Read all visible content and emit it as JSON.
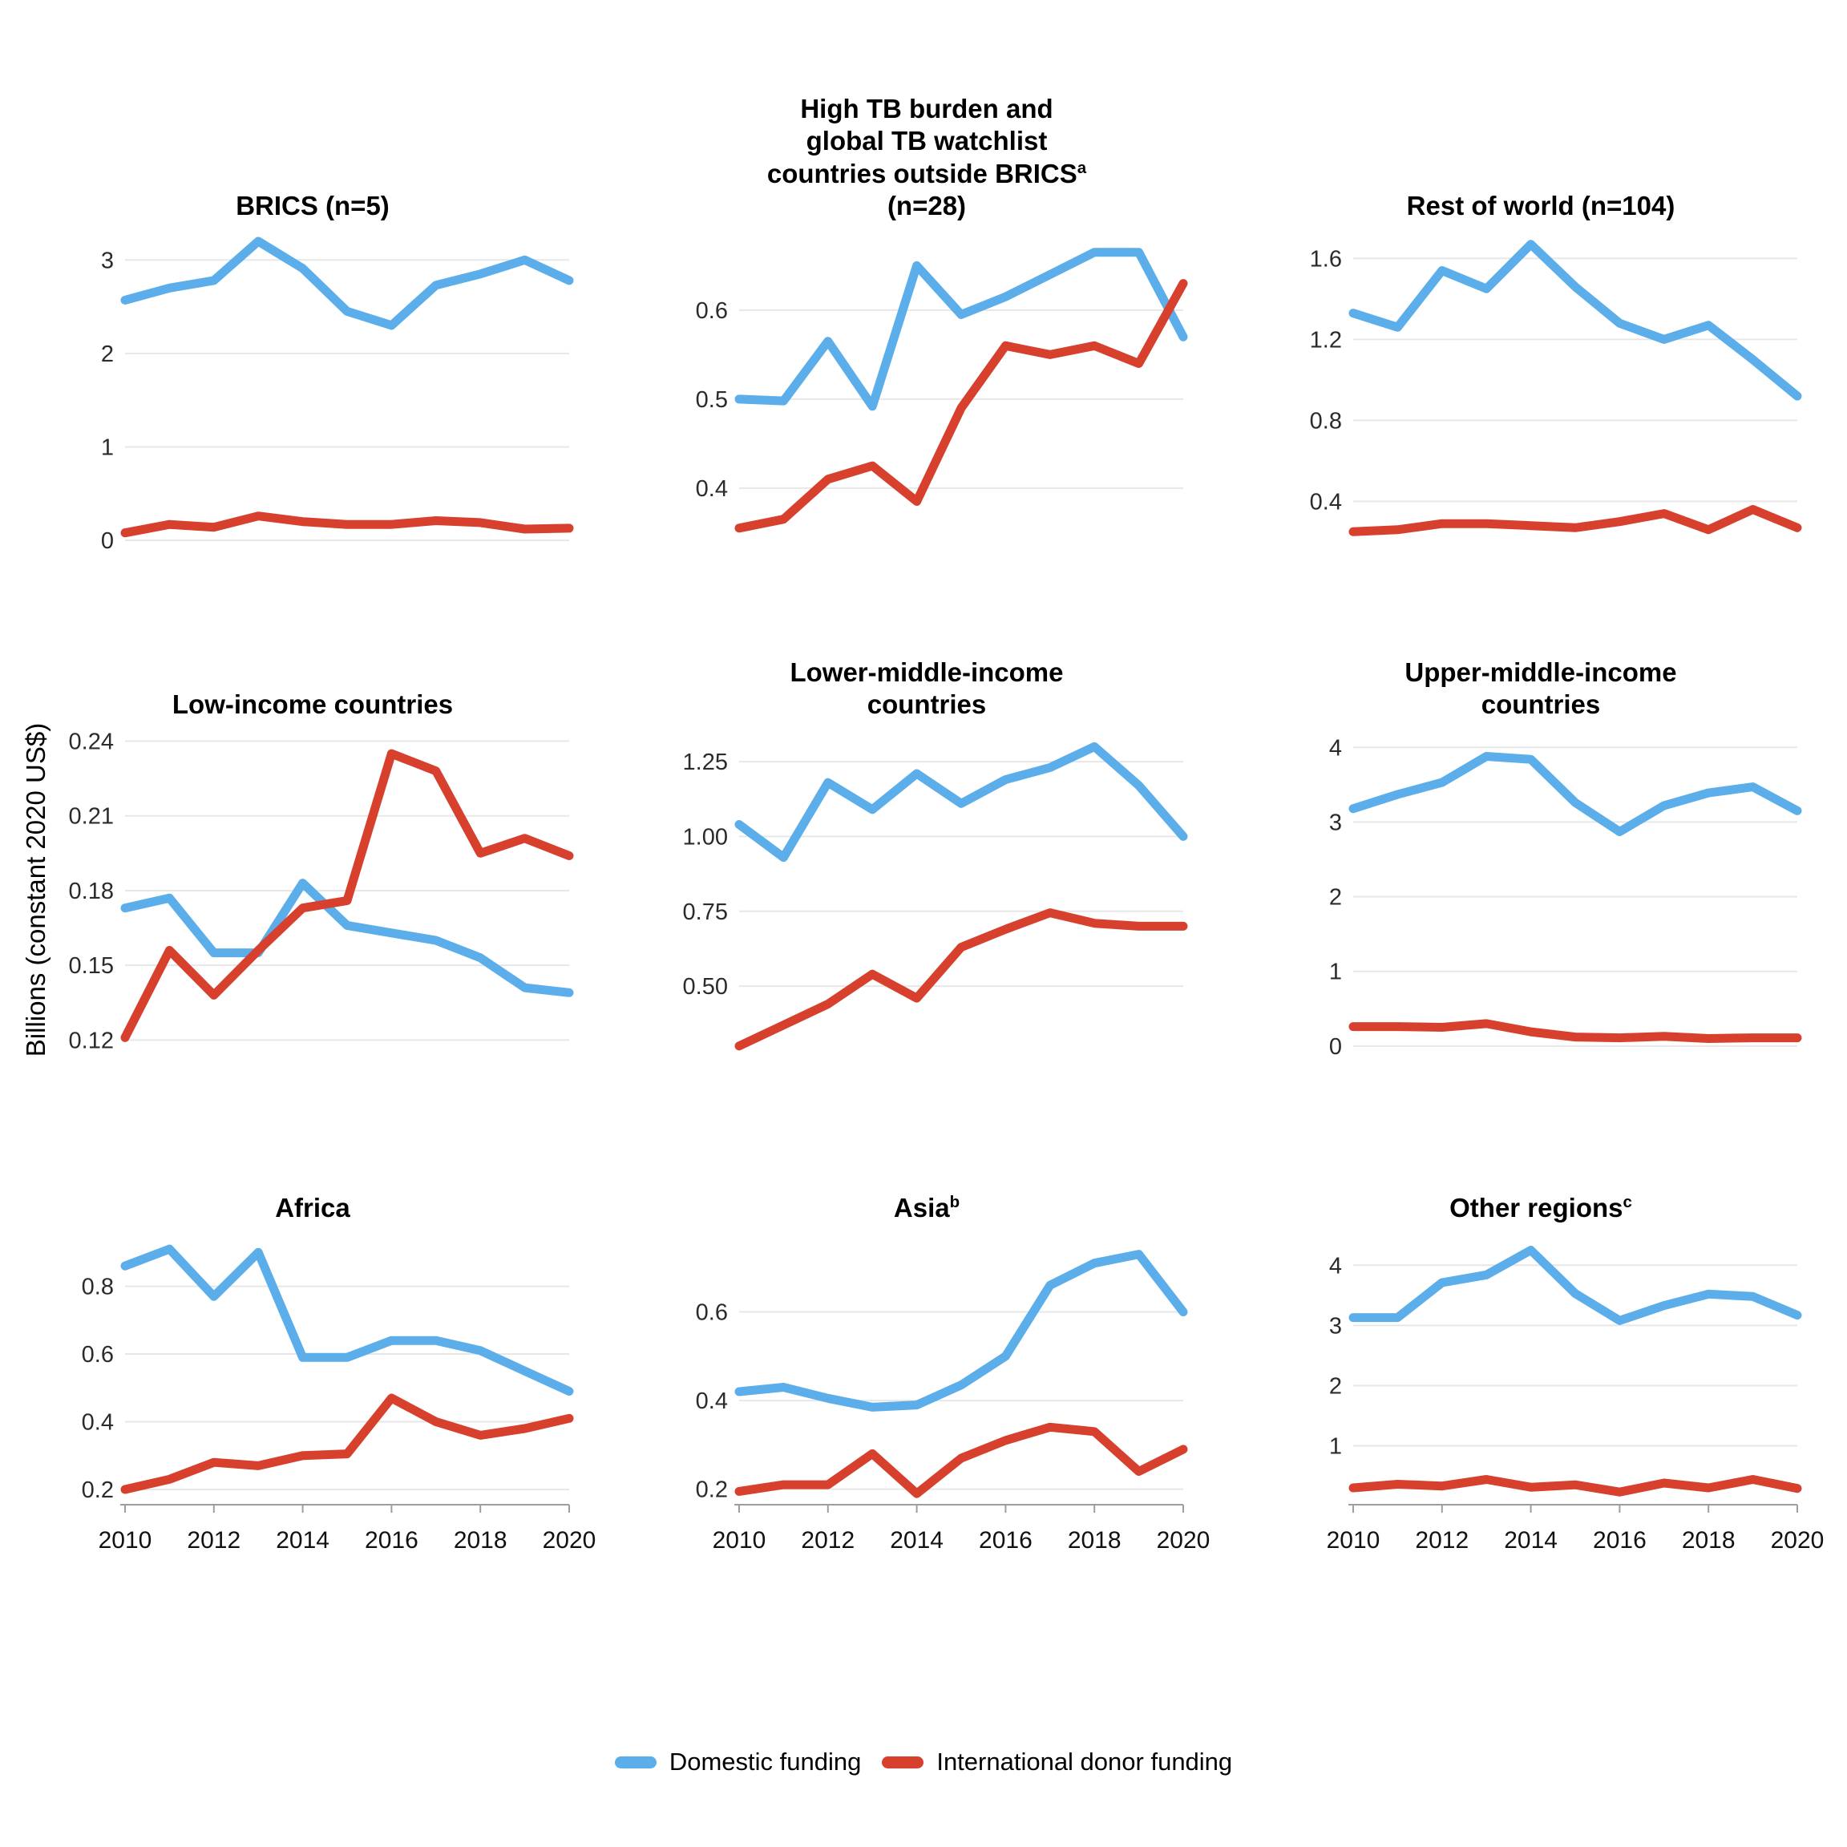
{
  "page": {
    "background": "#ffffff"
  },
  "colors": {
    "domestic": "#5BAEE9",
    "donor": "#D8402E",
    "grid": "#E7E7E7",
    "tick_text": "#2b2b2b",
    "xtick_text": "#111111",
    "axis_line": "#9e9e9e"
  },
  "ylabel": "Billions (constant 2020 US$)",
  "legend": [
    {
      "label": "Domestic funding",
      "series": "domestic"
    },
    {
      "label": "International donor funding",
      "series": "donor"
    }
  ],
  "years": [
    2010,
    2011,
    2012,
    2013,
    2014,
    2015,
    2016,
    2017,
    2018,
    2019,
    2020
  ],
  "xtick_labels": [
    "2010",
    "2012",
    "2014",
    "2016",
    "2018",
    "2020"
  ],
  "chart_data": [
    {
      "type": "line",
      "title_lines": [
        {
          "t": "BRICS (n=5)",
          "sup": ""
        }
      ],
      "yticks": [
        {
          "v": 0,
          "label": "0"
        },
        {
          "v": 1,
          "label": "1"
        },
        {
          "v": 2,
          "label": "2"
        },
        {
          "v": 3,
          "label": "3"
        }
      ],
      "ylim": [
        -0.06,
        3.32
      ],
      "show_x_axis": false,
      "series": [
        {
          "name": "Domestic funding",
          "color": "domestic",
          "values": [
            2.57,
            2.7,
            2.78,
            3.2,
            2.91,
            2.45,
            2.3,
            2.73,
            2.85,
            3.0,
            2.78
          ]
        },
        {
          "name": "International donor funding",
          "color": "donor",
          "values": [
            0.08,
            0.17,
            0.14,
            0.26,
            0.2,
            0.17,
            0.17,
            0.21,
            0.19,
            0.12,
            0.13
          ]
        }
      ]
    },
    {
      "type": "line",
      "title_lines": [
        {
          "t": "High TB burden and",
          "sup": ""
        },
        {
          "t": "global TB watchlist",
          "sup": ""
        },
        {
          "t": "countries outside BRICS",
          "sup": "a"
        },
        {
          "t": "(n=28)",
          "sup": ""
        }
      ],
      "yticks": [
        {
          "v": 0.4,
          "label": "0.4"
        },
        {
          "v": 0.5,
          "label": "0.5"
        },
        {
          "v": 0.6,
          "label": "0.6"
        }
      ],
      "ylim": [
        0.335,
        0.69
      ],
      "show_x_axis": false,
      "series": [
        {
          "name": "Domestic funding",
          "color": "domestic",
          "values": [
            0.5,
            0.498,
            0.565,
            0.492,
            0.65,
            0.595,
            0.615,
            0.64,
            0.665,
            0.665,
            0.57
          ]
        },
        {
          "name": "International donor funding",
          "color": "donor",
          "values": [
            0.355,
            0.365,
            0.41,
            0.425,
            0.385,
            0.49,
            0.56,
            0.55,
            0.56,
            0.54,
            0.63
          ]
        }
      ]
    },
    {
      "type": "line",
      "title_lines": [
        {
          "t": "Rest of world (n=104)",
          "sup": ""
        }
      ],
      "yticks": [
        {
          "v": 0.4,
          "label": "0.4"
        },
        {
          "v": 0.8,
          "label": "0.8"
        },
        {
          "v": 1.2,
          "label": "1.2"
        },
        {
          "v": 1.6,
          "label": "1.6"
        }
      ],
      "ylim": [
        0.18,
        1.74
      ],
      "show_x_axis": false,
      "series": [
        {
          "name": "Domestic funding",
          "color": "domestic",
          "values": [
            1.33,
            1.26,
            1.54,
            1.45,
            1.67,
            1.46,
            1.28,
            1.2,
            1.27,
            1.1,
            0.92
          ]
        },
        {
          "name": "International donor funding",
          "color": "donor",
          "values": [
            0.25,
            0.26,
            0.29,
            0.29,
            0.28,
            0.27,
            0.3,
            0.34,
            0.26,
            0.36,
            0.27
          ]
        }
      ]
    },
    {
      "type": "line",
      "title_lines": [
        {
          "t": "Low-income countries",
          "sup": ""
        }
      ],
      "yticks": [
        {
          "v": 0.12,
          "label": "0.12"
        },
        {
          "v": 0.15,
          "label": "0.15"
        },
        {
          "v": 0.18,
          "label": "0.18"
        },
        {
          "v": 0.21,
          "label": "0.21"
        },
        {
          "v": 0.24,
          "label": "0.24"
        }
      ],
      "ylim": [
        0.114,
        0.245
      ],
      "show_x_axis": false,
      "series": [
        {
          "name": "Domestic funding",
          "color": "domestic",
          "values": [
            0.173,
            0.177,
            0.155,
            0.155,
            0.183,
            0.166,
            0.163,
            0.16,
            0.153,
            0.141,
            0.139
          ]
        },
        {
          "name": "International donor funding",
          "color": "donor",
          "values": [
            0.121,
            0.156,
            0.138,
            0.156,
            0.173,
            0.176,
            0.235,
            0.228,
            0.195,
            0.201,
            0.194
          ]
        }
      ]
    },
    {
      "type": "line",
      "title_lines": [
        {
          "t": "Lower-middle-income",
          "sup": ""
        },
        {
          "t": "countries",
          "sup": ""
        }
      ],
      "yticks": [
        {
          "v": 0.5,
          "label": "0.50"
        },
        {
          "v": 0.75,
          "label": "0.75"
        },
        {
          "v": 1.0,
          "label": "1.00"
        },
        {
          "v": 1.25,
          "label": "1.25"
        }
      ],
      "ylim": [
        0.27,
        1.36
      ],
      "show_x_axis": false,
      "series": [
        {
          "name": "Domestic funding",
          "color": "domestic",
          "values": [
            1.04,
            0.93,
            1.18,
            1.09,
            1.21,
            1.11,
            1.19,
            1.23,
            1.3,
            1.17,
            1.0
          ]
        },
        {
          "name": "International donor funding",
          "color": "donor",
          "values": [
            0.3,
            0.37,
            0.44,
            0.54,
            0.46,
            0.63,
            0.69,
            0.745,
            0.71,
            0.7,
            0.7
          ]
        }
      ]
    },
    {
      "type": "line",
      "title_lines": [
        {
          "t": "Upper-middle-income",
          "sup": ""
        },
        {
          "t": "countries",
          "sup": ""
        }
      ],
      "yticks": [
        {
          "v": 0,
          "label": "0"
        },
        {
          "v": 1,
          "label": "1"
        },
        {
          "v": 2,
          "label": "2"
        },
        {
          "v": 3,
          "label": "3"
        },
        {
          "v": 4,
          "label": "4"
        }
      ],
      "ylim": [
        -0.12,
        4.25
      ],
      "show_x_axis": false,
      "series": [
        {
          "name": "Domestic funding",
          "color": "domestic",
          "values": [
            3.18,
            3.37,
            3.53,
            3.88,
            3.84,
            3.26,
            2.87,
            3.22,
            3.39,
            3.47,
            3.15
          ]
        },
        {
          "name": "International donor funding",
          "color": "donor",
          "values": [
            0.26,
            0.26,
            0.25,
            0.3,
            0.19,
            0.12,
            0.11,
            0.13,
            0.1,
            0.11,
            0.11
          ]
        }
      ]
    },
    {
      "type": "line",
      "title_lines": [
        {
          "t": "Africa",
          "sup": ""
        }
      ],
      "yticks": [
        {
          "v": 0.2,
          "label": "0.2"
        },
        {
          "v": 0.4,
          "label": "0.4"
        },
        {
          "v": 0.6,
          "label": "0.6"
        },
        {
          "v": 0.8,
          "label": "0.8"
        }
      ],
      "ylim": [
        0.155,
        0.96
      ],
      "show_x_axis": true,
      "series": [
        {
          "name": "Domestic funding",
          "color": "domestic",
          "values": [
            0.86,
            0.91,
            0.77,
            0.9,
            0.59,
            0.59,
            0.64,
            0.64,
            0.61,
            0.55,
            0.49
          ]
        },
        {
          "name": "International donor funding",
          "color": "donor",
          "values": [
            0.2,
            0.23,
            0.28,
            0.27,
            0.3,
            0.305,
            0.47,
            0.4,
            0.36,
            0.38,
            0.41
          ]
        }
      ]
    },
    {
      "type": "line",
      "title_lines": [
        {
          "t": "Asia",
          "sup": "b"
        }
      ],
      "yticks": [
        {
          "v": 0.2,
          "label": "0.2"
        },
        {
          "v": 0.4,
          "label": "0.4"
        },
        {
          "v": 0.6,
          "label": "0.6"
        }
      ],
      "ylim": [
        0.165,
        0.78
      ],
      "show_x_axis": true,
      "series": [
        {
          "name": "Domestic funding",
          "color": "domestic",
          "values": [
            0.42,
            0.43,
            0.405,
            0.385,
            0.39,
            0.435,
            0.5,
            0.66,
            0.71,
            0.73,
            0.6
          ]
        },
        {
          "name": "International donor funding",
          "color": "donor",
          "values": [
            0.195,
            0.21,
            0.21,
            0.28,
            0.19,
            0.27,
            0.31,
            0.34,
            0.33,
            0.24,
            0.29
          ]
        }
      ]
    },
    {
      "type": "line",
      "title_lines": [
        {
          "t": "Other regions",
          "sup": "c"
        }
      ],
      "yticks": [
        {
          "v": 1,
          "label": "1"
        },
        {
          "v": 2,
          "label": "2"
        },
        {
          "v": 3,
          "label": "3"
        },
        {
          "v": 4,
          "label": "4"
        }
      ],
      "ylim": [
        0.02,
        4.55
      ],
      "show_x_axis": true,
      "series": [
        {
          "name": "Domestic funding",
          "color": "domestic",
          "values": [
            3.13,
            3.13,
            3.71,
            3.84,
            4.25,
            3.53,
            3.08,
            3.33,
            3.52,
            3.48,
            3.17
          ]
        },
        {
          "name": "International donor funding",
          "color": "donor",
          "values": [
            0.3,
            0.36,
            0.33,
            0.44,
            0.31,
            0.35,
            0.23,
            0.38,
            0.3,
            0.44,
            0.29
          ]
        }
      ]
    }
  ]
}
